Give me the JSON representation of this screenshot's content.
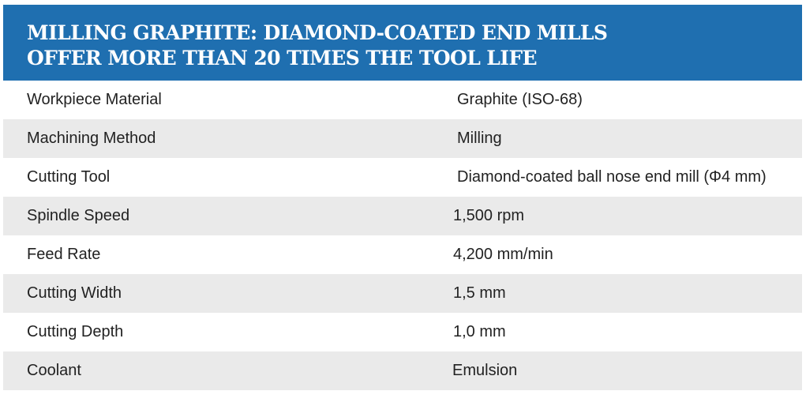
{
  "header": {
    "title_line1": "MILLING GRAPHITE: DIAMOND-COATED END MILLS",
    "title_line2": "OFFER MORE THAN 20 TIMES THE TOOL LIFE"
  },
  "rows": [
    {
      "label": "Workpiece Material",
      "value": "Graphite (ISO-68)"
    },
    {
      "label": "Machining Method",
      "value": "Milling"
    },
    {
      "label": "Cutting Tool",
      "value": "Diamond-coated ball nose end mill (Φ4 mm)"
    },
    {
      "label": "Spindle Speed",
      "value": "1,500 rpm"
    },
    {
      "label": "Feed Rate",
      "value": "4,200 mm/min"
    },
    {
      "label": "Cutting Width",
      "value": "1,5 mm"
    },
    {
      "label": "Cutting Depth",
      "value": "1,0 mm"
    },
    {
      "label": "Coolant",
      "value": "Emulsion"
    }
  ],
  "colors": {
    "header_bg": "#1f6fb0",
    "header_text": "#ffffff",
    "row_shade": "#eaeaea",
    "body_text": "#222222"
  }
}
